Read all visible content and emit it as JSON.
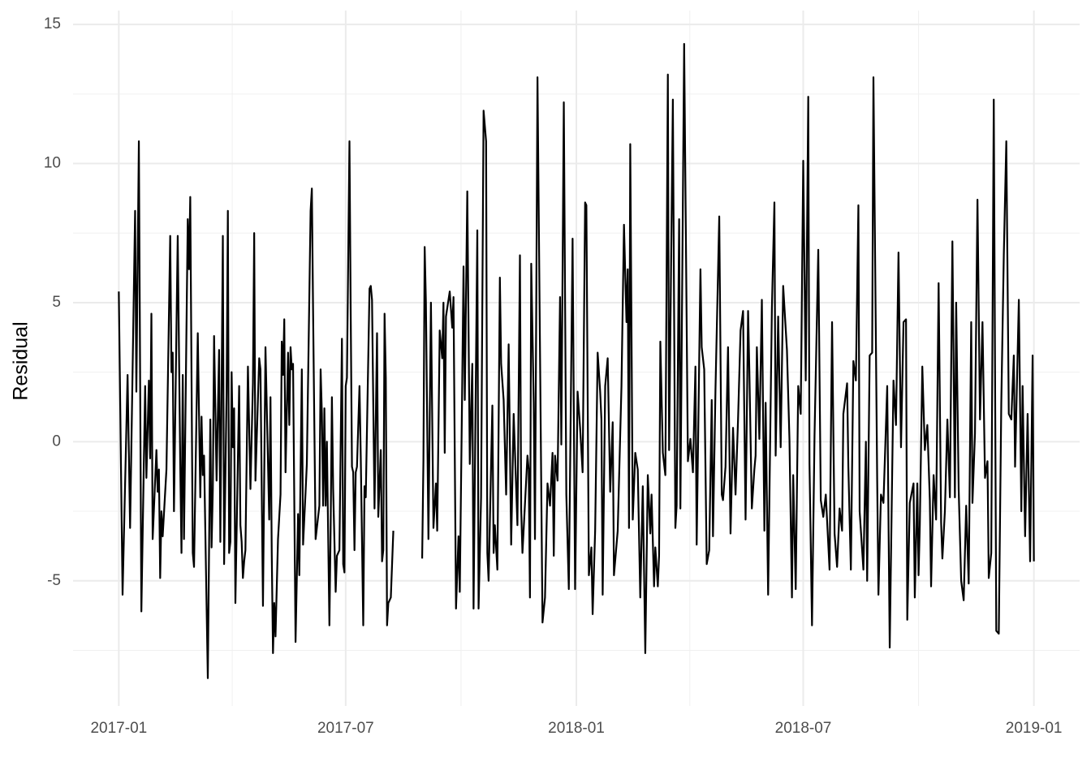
{
  "chart_data": {
    "type": "line",
    "y_label": "Residual",
    "color": "#000000",
    "grid": true,
    "xlim": [
      -36.5,
      766.5
    ],
    "ylim": [
      -9.5,
      15.5
    ],
    "xticks": [
      {
        "value": 0,
        "label": "2017-01"
      },
      {
        "value": 181,
        "label": "2017-07"
      },
      {
        "value": 365,
        "label": "2018-01"
      },
      {
        "value": 546,
        "label": "2018-07"
      },
      {
        "value": 730,
        "label": "2019-01"
      }
    ],
    "yticks": [
      -5,
      0,
      5,
      10,
      15
    ],
    "x": [
      0,
      3,
      7,
      9,
      13,
      14,
      16,
      18,
      21,
      22,
      24,
      25,
      26,
      27,
      30,
      31,
      32,
      33,
      34,
      35,
      38,
      41,
      42,
      43,
      44,
      47,
      49,
      50,
      51,
      52,
      55,
      56,
      57,
      59,
      60,
      63,
      65,
      66,
      67,
      68,
      71,
      73,
      74,
      75,
      76,
      78,
      80,
      81,
      83,
      84,
      86,
      87,
      88,
      89,
      90,
      91,
      92,
      93,
      96,
      97,
      98,
      99,
      100,
      101,
      103,
      105,
      107,
      108,
      109,
      112,
      113,
      115,
      117,
      120,
      121,
      122,
      123,
      124,
      125,
      127,
      129,
      130,
      131,
      132,
      133,
      135,
      136,
      137,
      138,
      139,
      141,
      143,
      144,
      146,
      147,
      149,
      150,
      153,
      154,
      155,
      157,
      160,
      161,
      162,
      163,
      164,
      165,
      166,
      168,
      169,
      170,
      171,
      173,
      174,
      176,
      178,
      179,
      180,
      181,
      182,
      184,
      185,
      186,
      187,
      188,
      189,
      190,
      192,
      193,
      195,
      196,
      197,
      200,
      201,
      202,
      204,
      206,
      207,
      209,
      210,
      211,
      212,
      213,
      214,
      215,
      217,
      219,
      230,
      242,
      243,
      244,
      245,
      247,
      249,
      251,
      253,
      254,
      256,
      258,
      259,
      260,
      261,
      264,
      266,
      267,
      269,
      271,
      272,
      274,
      275,
      276,
      278,
      280,
      282,
      283,
      286,
      287,
      289,
      291,
      293,
      294,
      295,
      298,
      299,
      300,
      302,
      304,
      305,
      307,
      309,
      311,
      313,
      315,
      318,
      320,
      321,
      322,
      326,
      327,
      328,
      329,
      331,
      332,
      334,
      338,
      340,
      342,
      344,
      346,
      347,
      348,
      350,
      352,
      353,
      355,
      357,
      359,
      362,
      364,
      366,
      368,
      370,
      372,
      373,
      375,
      377,
      378,
      380,
      382,
      384,
      385,
      386,
      388,
      390,
      392,
      394,
      395,
      398,
      401,
      403,
      405,
      406,
      407,
      408,
      410,
      412,
      414,
      416,
      418,
      420,
      422,
      424,
      425,
      427,
      428,
      430,
      431,
      432,
      434,
      436,
      438,
      439,
      442,
      444,
      445,
      447,
      448,
      451,
      454,
      456,
      458,
      460,
      461,
      464,
      465,
      467,
      469,
      471,
      473,
      474,
      476,
      479,
      481,
      482,
      484,
      486,
      488,
      490,
      492,
      494,
      496,
      498,
      500,
      502,
      503,
      505,
      507,
      508,
      509,
      511,
      513,
      515,
      516,
      518,
      521,
      523,
      524,
      526,
      528,
      530,
      533,
      535,
      537,
      538,
      540,
      542,
      544,
      546,
      548,
      550,
      551,
      553,
      555,
      558,
      560,
      562,
      564,
      565,
      567,
      569,
      571,
      573,
      575,
      577,
      578,
      581,
      582,
      584,
      586,
      588,
      590,
      591,
      594,
      596,
      597,
      599,
      601,
      602,
      605,
      606,
      608,
      610,
      613,
      615,
      618,
      620,
      622,
      624,
      626,
      628,
      629,
      631,
      634,
      635,
      637,
      638,
      639,
      641,
      643,
      645,
      647,
      648,
      650,
      652,
      654,
      656,
      657,
      659,
      661,
      663,
      665,
      667,
      668,
      670,
      672,
      674,
      676,
      678,
      680,
      681,
      683,
      685,
      687,
      689,
      691,
      693,
      694,
      696,
      698,
      700,
      702,
      704,
      706,
      708,
      710,
      712,
      714,
      715,
      718,
      720,
      721,
      723,
      725,
      727,
      729,
      730
    ],
    "values": [
      5.4,
      -5.5,
      2.4,
      -3.1,
      8.3,
      1.8,
      10.8,
      -6.1,
      2.0,
      -1.3,
      2.2,
      -0.6,
      4.6,
      -3.5,
      -0.3,
      -1.8,
      -1.0,
      -4.9,
      -2.5,
      -3.4,
      -1.0,
      7.4,
      2.5,
      3.2,
      -2.5,
      7.4,
      -0.8,
      -4.0,
      2.4,
      -3.5,
      8.0,
      6.2,
      8.8,
      -4.0,
      -4.5,
      3.9,
      -2.0,
      0.9,
      -1.2,
      -0.5,
      -8.5,
      0.8,
      -3.8,
      -1.7,
      3.8,
      -1.4,
      3.3,
      -3.6,
      7.4,
      -4.4,
      1.8,
      8.3,
      -4.0,
      -3.6,
      2.5,
      -0.2,
      1.2,
      -5.8,
      2.0,
      -3.0,
      -3.6,
      -4.9,
      -4.3,
      -3.9,
      2.7,
      -1.7,
      2.1,
      7.5,
      -1.4,
      3.0,
      2.6,
      -5.9,
      3.4,
      -2.8,
      1.6,
      -4.0,
      -7.6,
      -5.8,
      -7.0,
      -3.5,
      -1.9,
      3.6,
      2.4,
      4.4,
      -1.1,
      3.2,
      0.6,
      3.4,
      2.6,
      2.8,
      -7.2,
      -2.6,
      -4.8,
      2.6,
      -3.7,
      -1.8,
      -0.8,
      8.3,
      9.1,
      4.6,
      -3.5,
      -2.3,
      2.6,
      1.0,
      -2.3,
      1.2,
      -2.3,
      0.0,
      -6.6,
      -3.1,
      1.6,
      -1.7,
      -5.4,
      -4.1,
      -3.9,
      3.7,
      -4.4,
      -4.7,
      2.0,
      2.3,
      10.8,
      4.6,
      -0.9,
      -1.1,
      -3.9,
      -1.1,
      -0.9,
      2.0,
      -0.5,
      -6.6,
      -1.6,
      -2.0,
      5.5,
      5.6,
      5.1,
      -2.4,
      3.9,
      -2.7,
      -0.3,
      -4.3,
      -3.9,
      4.6,
      2.3,
      -6.6,
      -5.8,
      -5.6,
      -3.2,
      null,
      -4.2,
      -0.7,
      7.0,
      5.0,
      -3.5,
      5.0,
      -3.1,
      -1.5,
      -3.2,
      4.0,
      3.0,
      5.0,
      -0.4,
      4.5,
      5.4,
      4.1,
      5.2,
      -6.0,
      -3.4,
      -5.4,
      2.2,
      6.3,
      1.5,
      9.0,
      -0.8,
      2.8,
      -6.0,
      7.6,
      -6.0,
      -2.0,
      11.9,
      10.8,
      -4.0,
      -5.0,
      1.3,
      -4.0,
      -3.0,
      -4.6,
      5.9,
      2.8,
      1.5,
      -1.9,
      3.5,
      -3.7,
      1.0,
      -3.0,
      6.7,
      -2.4,
      -4.0,
      -0.5,
      -1.0,
      -5.6,
      6.4,
      1.4,
      -3.5,
      13.1,
      -6.5,
      -5.6,
      -1.5,
      -2.3,
      -0.4,
      -4.1,
      -0.5,
      -1.4,
      5.2,
      -0.1,
      12.2,
      -1.9,
      -5.3,
      7.3,
      -5.3,
      1.8,
      0.5,
      -1.1,
      8.6,
      8.5,
      -4.8,
      -3.8,
      -6.2,
      -3.2,
      3.2,
      1.8,
      0.8,
      -5.5,
      2.0,
      3.0,
      -1.8,
      0.7,
      -4.8,
      -3.2,
      2.0,
      7.8,
      4.3,
      6.2,
      -3.1,
      10.7,
      -2.8,
      -0.4,
      -1.0,
      -5.6,
      -1.6,
      -7.6,
      -1.2,
      -3.3,
      -1.9,
      -5.2,
      -3.8,
      -5.2,
      -4.1,
      3.6,
      -0.4,
      -1.2,
      13.2,
      -0.3,
      12.3,
      -3.1,
      -2.3,
      8.0,
      -2.4,
      14.3,
      -0.7,
      0.1,
      -1.1,
      2.7,
      -3.7,
      6.2,
      3.4,
      2.6,
      -4.4,
      -3.9,
      1.5,
      -3.4,
      1.9,
      8.1,
      -1.9,
      -2.1,
      -0.9,
      3.4,
      -3.3,
      0.5,
      -1.9,
      0.8,
      4.0,
      4.7,
      -2.8,
      4.7,
      2.6,
      -2.4,
      -1.0,
      -0.5,
      3.4,
      0.1,
      5.1,
      -3.2,
      1.4,
      -5.5,
      4.8,
      8.6,
      -0.5,
      4.5,
      -0.2,
      5.6,
      3.3,
      0.1,
      -5.6,
      -1.2,
      -5.3,
      2.0,
      1.0,
      10.1,
      2.2,
      12.4,
      -0.8,
      -6.6,
      0.2,
      6.9,
      -2.1,
      -2.7,
      -1.9,
      -2.8,
      -4.6,
      4.3,
      -3.3,
      -4.5,
      -2.4,
      -3.2,
      1.0,
      2.1,
      -0.9,
      -4.6,
      2.9,
      2.2,
      8.5,
      -2.5,
      -4.6,
      0.0,
      -5.0,
      3.1,
      3.2,
      13.1,
      -1.4,
      -5.5,
      -1.9,
      -2.2,
      2.0,
      -7.4,
      2.2,
      0.6,
      6.8,
      -0.2,
      4.3,
      4.4,
      -6.4,
      -2.2,
      -1.5,
      -5.6,
      -1.5,
      -4.8,
      -3.0,
      2.7,
      -0.3,
      0.6,
      -2.1,
      -5.2,
      -1.2,
      -2.8,
      5.7,
      -2.9,
      -4.2,
      -2.5,
      0.8,
      -2.0,
      7.2,
      -2.0,
      5.0,
      -1.7,
      -5.0,
      -5.7,
      -2.3,
      -5.1,
      4.3,
      -2.2,
      0.3,
      8.7,
      0.8,
      4.3,
      -1.3,
      -0.7,
      -4.9,
      -4.0,
      12.3,
      -6.8,
      -6.9,
      1.4,
      6.7,
      10.8,
      1.0,
      0.8,
      3.1,
      -0.9,
      5.1,
      -2.5,
      2.0,
      -3.4,
      1.0,
      -4.3,
      3.1,
      -4.3
    ]
  }
}
